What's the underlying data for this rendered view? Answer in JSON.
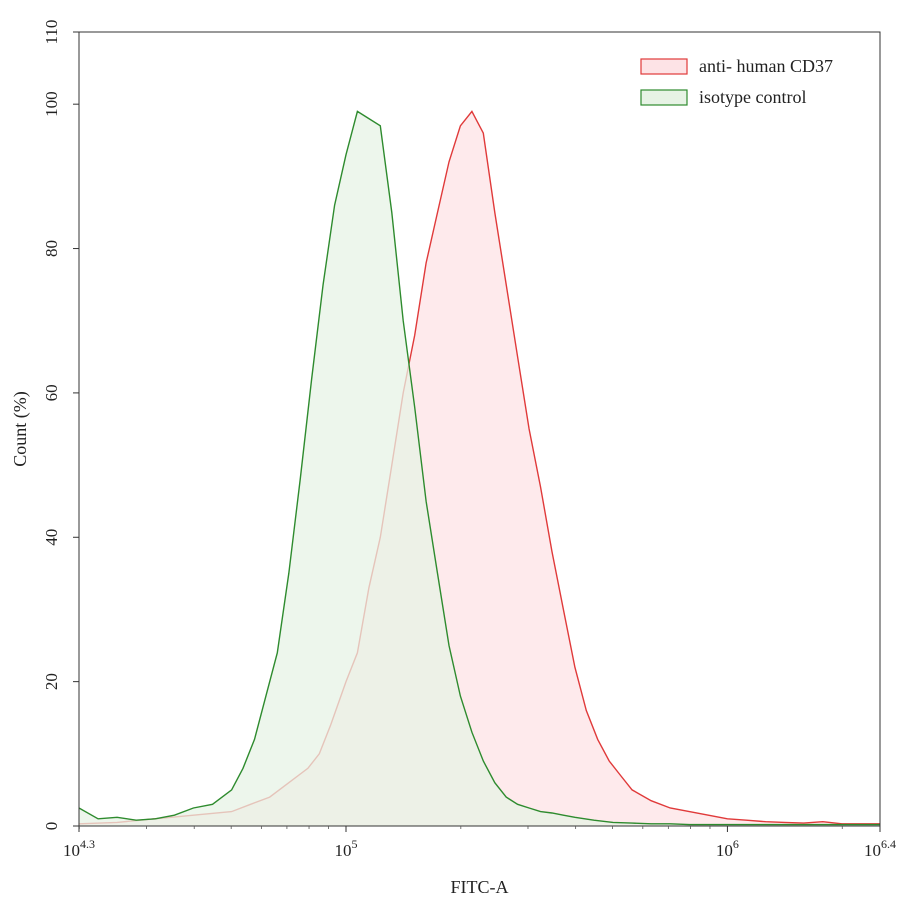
{
  "chart_data": {
    "type": "area",
    "xlabel": "FITC-A",
    "ylabel": "Count (%)",
    "xscale": "log10",
    "xlim_exponent": [
      4.3,
      6.4
    ],
    "ylim": [
      0,
      110
    ],
    "grid": false,
    "legend_position": "top-right",
    "x_ticks": [
      {
        "base": "10",
        "exp": "4.3",
        "value_exp": 4.3
      },
      {
        "base": "10",
        "exp": "5",
        "value_exp": 5
      },
      {
        "base": "10",
        "exp": "6",
        "value_exp": 6
      },
      {
        "base": "10",
        "exp": "6.4",
        "value_exp": 6.4
      }
    ],
    "y_ticks": [
      "0",
      "20",
      "40",
      "60",
      "80",
      "100",
      "110"
    ],
    "series": [
      {
        "name": "anti- human CD37",
        "stroke": "#e03a3a",
        "fill": "#fde3e6",
        "x_log10": [
          4.3,
          4.4,
          4.5,
          4.6,
          4.7,
          4.75,
          4.8,
          4.85,
          4.9,
          4.93,
          4.96,
          5.0,
          5.03,
          5.06,
          5.09,
          5.12,
          5.15,
          5.18,
          5.21,
          5.24,
          5.27,
          5.3,
          5.33,
          5.36,
          5.39,
          5.42,
          5.45,
          5.48,
          5.51,
          5.54,
          5.57,
          5.6,
          5.63,
          5.66,
          5.69,
          5.72,
          5.75,
          5.8,
          5.85,
          5.9,
          5.95,
          6.0,
          6.05,
          6.1,
          6.15,
          6.2,
          6.25,
          6.3,
          6.35,
          6.4
        ],
        "y": [
          0.3,
          0.5,
          1,
          1.5,
          2,
          3,
          4,
          6,
          8,
          10,
          14,
          20,
          24,
          33,
          40,
          50,
          60,
          68,
          78,
          85,
          92,
          97,
          99,
          96,
          85,
          75,
          65,
          55,
          47,
          38,
          30,
          22,
          16,
          12,
          9,
          7,
          5,
          3.5,
          2.5,
          2,
          1.5,
          1,
          0.8,
          0.6,
          0.5,
          0.4,
          0.6,
          0.3,
          0.3,
          0.3
        ]
      },
      {
        "name": "isotype control",
        "stroke": "#2e8b2e",
        "fill": "#e7f3e5",
        "x_log10": [
          4.3,
          4.35,
          4.4,
          4.45,
          4.5,
          4.55,
          4.6,
          4.65,
          4.7,
          4.73,
          4.76,
          4.79,
          4.82,
          4.85,
          4.88,
          4.91,
          4.94,
          4.97,
          5.0,
          5.03,
          5.06,
          5.09,
          5.12,
          5.15,
          5.18,
          5.21,
          5.24,
          5.27,
          5.3,
          5.33,
          5.36,
          5.39,
          5.42,
          5.45,
          5.48,
          5.51,
          5.54,
          5.57,
          5.6,
          5.65,
          5.7,
          5.75,
          5.8,
          5.85,
          5.9,
          5.95,
          6.0,
          6.1,
          6.2,
          6.3,
          6.4
        ],
        "y": [
          2.5,
          1,
          1.2,
          0.8,
          1,
          1.5,
          2.5,
          3,
          5,
          8,
          12,
          18,
          24,
          35,
          48,
          62,
          75,
          86,
          93,
          99,
          98,
          97,
          85,
          70,
          58,
          45,
          35,
          25,
          18,
          13,
          9,
          6,
          4,
          3,
          2.5,
          2,
          1.8,
          1.5,
          1.2,
          0.8,
          0.5,
          0.4,
          0.3,
          0.3,
          0.2,
          0.2,
          0.2,
          0.2,
          0.2,
          0.2,
          0.2
        ]
      }
    ]
  }
}
